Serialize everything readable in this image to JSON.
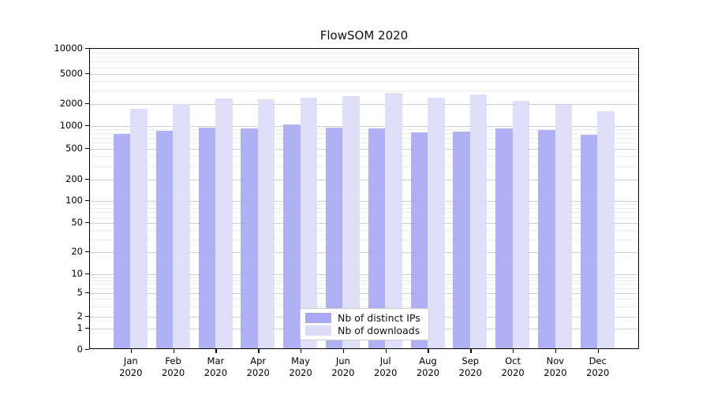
{
  "title": "FlowSOM 2020",
  "chart_data": {
    "type": "bar",
    "title": "FlowSOM 2020",
    "categories": [
      "Jan 2020",
      "Feb 2020",
      "Mar 2020",
      "Apr 2020",
      "May 2020",
      "Jun 2020",
      "Jul 2020",
      "Aug 2020",
      "Sep 2020",
      "Oct 2020",
      "Nov 2020",
      "Dec 2020"
    ],
    "series": [
      {
        "name": "Nb of distinct IPs",
        "color": "#a9a9f3",
        "values": [
          750,
          830,
          920,
          890,
          990,
          905,
          890,
          790,
          815,
          880,
          855,
          735
        ]
      },
      {
        "name": "Nb of downloads",
        "color": "#dcdcf8",
        "values": [
          1650,
          1900,
          2250,
          2200,
          2290,
          2450,
          2700,
          2300,
          2530,
          2100,
          1870,
          1520
        ]
      }
    ],
    "xlabel": "",
    "ylabel": "",
    "yscale": "symlog",
    "yticks": [
      0,
      1,
      2,
      5,
      10,
      20,
      50,
      100,
      200,
      500,
      1000,
      2000,
      5000,
      10000
    ],
    "ylim": [
      0,
      10000
    ],
    "grid": true,
    "legend_position": "lower-center"
  },
  "legend": {
    "items": [
      {
        "label": "Nb of distinct IPs",
        "color": "#a9a9f3"
      },
      {
        "label": "Nb of downloads",
        "color": "#dcdcf8"
      }
    ]
  },
  "colors": {
    "distinct_ips": "#a9a9f3",
    "downloads": "#dcdcf8",
    "grid_major": "#cfcfcf",
    "grid_minor": "#ebebeb",
    "axis": "#000000"
  }
}
